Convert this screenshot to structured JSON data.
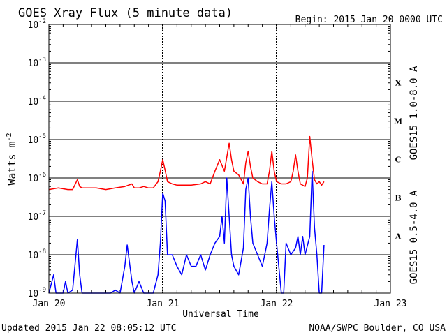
{
  "header": {
    "title": "GOES Xray Flux (5 minute data)",
    "begin": "Begin:  2015 Jan 20 0000 UTC"
  },
  "footer": {
    "updated": "Updated 2015 Jan 22 08:05:12 UTC",
    "credit": "NOAA/SWPC Boulder, CO USA"
  },
  "chart_data": {
    "type": "line",
    "title": "GOES Xray Flux (5 minute data)",
    "xlabel": "Universal Time",
    "ylabel": "Watts m",
    "ylabel_sup": "-2",
    "yscale": "log",
    "ylim": [
      1e-09,
      0.01
    ],
    "xlim": [
      "2015-01-20 00:00",
      "2015-01-23 00:00"
    ],
    "x_ticks": [
      "Jan 20",
      "Jan 21",
      "Jan 22",
      "Jan 23"
    ],
    "y_ticks": [
      {
        "value": 0.01,
        "mantissa": "10",
        "exp": "-2"
      },
      {
        "value": 0.001,
        "mantissa": "10",
        "exp": "-3"
      },
      {
        "value": 0.0001,
        "mantissa": "10",
        "exp": "-4"
      },
      {
        "value": 1e-05,
        "mantissa": "10",
        "exp": "-5"
      },
      {
        "value": 1e-06,
        "mantissa": "10",
        "exp": "-6"
      },
      {
        "value": 1e-07,
        "mantissa": "10",
        "exp": "-7"
      },
      {
        "value": 1e-08,
        "mantissa": "10",
        "exp": "-8"
      },
      {
        "value": 1e-09,
        "mantissa": "10",
        "exp": "-9"
      }
    ],
    "flare_classes": [
      {
        "label": "X",
        "band": [
          0.0001,
          0.001
        ]
      },
      {
        "label": "M",
        "band": [
          1e-05,
          0.0001
        ]
      },
      {
        "label": "C",
        "band": [
          1e-06,
          1e-05
        ]
      },
      {
        "label": "B",
        "band": [
          1e-07,
          1e-06
        ]
      },
      {
        "label": "A",
        "band": [
          1e-08,
          1e-07
        ]
      }
    ],
    "grid": {
      "horizontal": true,
      "vertical_dashed_at_days": true
    },
    "legend_placement": "right (rotated)",
    "series": [
      {
        "name": "GOES15 1.0-8.0 A",
        "color": "#ff0000",
        "x_hours": [
          0,
          2,
          4,
          5,
          6,
          6.5,
          7,
          8,
          10,
          12,
          14,
          16,
          17.5,
          18,
          19,
          20,
          21,
          22,
          23,
          23.5,
          24,
          24.5,
          25,
          26,
          27,
          28,
          30,
          32,
          33,
          34,
          35,
          36,
          37,
          38,
          38.5,
          39,
          40,
          41,
          41.5,
          42,
          42.5,
          43,
          44,
          45,
          46,
          46.5,
          47,
          47.5,
          48,
          49,
          50,
          51,
          51.5,
          52,
          52.5,
          53,
          54,
          54.5,
          55,
          55.5,
          56,
          56.5,
          57,
          57.5,
          58
        ],
        "values": [
          5e-07,
          5.5e-07,
          5e-07,
          5e-07,
          9e-07,
          6e-07,
          5.5e-07,
          5.5e-07,
          5.5e-07,
          5e-07,
          5.5e-07,
          6e-07,
          7e-07,
          5.5e-07,
          5.5e-07,
          6e-07,
          5.5e-07,
          5.5e-07,
          8e-07,
          1.5e-06,
          3e-06,
          1.6e-06,
          8e-07,
          7e-07,
          6.5e-07,
          6.5e-07,
          6.5e-07,
          7e-07,
          8e-07,
          7e-07,
          1.5e-06,
          3e-06,
          1.5e-06,
          8e-06,
          3e-06,
          1.5e-06,
          1.2e-06,
          7e-07,
          2.5e-06,
          5e-06,
          2e-06,
          1e-06,
          8e-07,
          7e-07,
          7e-07,
          1.5e-06,
          5e-06,
          1.5e-06,
          8e-07,
          7e-07,
          7e-07,
          8e-07,
          1.5e-06,
          4e-06,
          1.5e-06,
          7e-07,
          6e-07,
          1e-06,
          1.2e-05,
          3e-06,
          9e-07,
          7e-07,
          8e-07,
          6.5e-07,
          8e-07
        ]
      },
      {
        "name": "GOES15 0.5-4.0 A",
        "color": "#0000ff",
        "x_hours": [
          0,
          1,
          1.5,
          2,
          3,
          3.5,
          4,
          5,
          6,
          6.5,
          7,
          8,
          9,
          10,
          12,
          13,
          14,
          15,
          16,
          16.5,
          17,
          17.5,
          18,
          19,
          20,
          21,
          22,
          23,
          23.5,
          24,
          24.5,
          25,
          26,
          27,
          28,
          29,
          30,
          31,
          32,
          33,
          34,
          35,
          36,
          36.5,
          37,
          37.5,
          38,
          38.5,
          39,
          40,
          41,
          41.5,
          42,
          42.5,
          43,
          44,
          45,
          46,
          46.5,
          47,
          47.5,
          48,
          49,
          49.5,
          50,
          51,
          52,
          52.5,
          53,
          53.5,
          54,
          55,
          55.5,
          56,
          56.5,
          57,
          57.5,
          58
        ],
        "values": [
          1e-09,
          3e-09,
          1e-09,
          1e-09,
          1e-09,
          2e-09,
          1e-09,
          1.2e-09,
          2.5e-08,
          3e-09,
          1e-09,
          1e-09,
          1e-09,
          1e-09,
          1e-09,
          1e-09,
          1.2e-09,
          1e-09,
          5e-09,
          1.8e-08,
          6e-09,
          2e-09,
          1e-09,
          2e-09,
          1e-09,
          1e-09,
          1e-09,
          3e-09,
          2e-08,
          4e-07,
          2.5e-07,
          1e-08,
          1e-08,
          5e-09,
          3e-09,
          1e-08,
          5e-09,
          5e-09,
          1e-08,
          4e-09,
          1e-08,
          2e-08,
          3e-08,
          1e-07,
          2e-08,
          1e-06,
          1e-07,
          1e-08,
          5e-09,
          3e-09,
          1.5e-08,
          5e-07,
          1e-06,
          1e-07,
          2e-08,
          1e-08,
          5e-09,
          2e-08,
          1.5e-07,
          8e-07,
          1e-07,
          2e-08,
          1e-09,
          1e-09,
          2e-08,
          1e-08,
          1.5e-08,
          3e-08,
          1e-08,
          3e-08,
          1e-08,
          3e-08,
          1.5e-06,
          5e-08,
          1e-08,
          1e-09,
          1e-09,
          1.8e-08
        ]
      }
    ]
  }
}
